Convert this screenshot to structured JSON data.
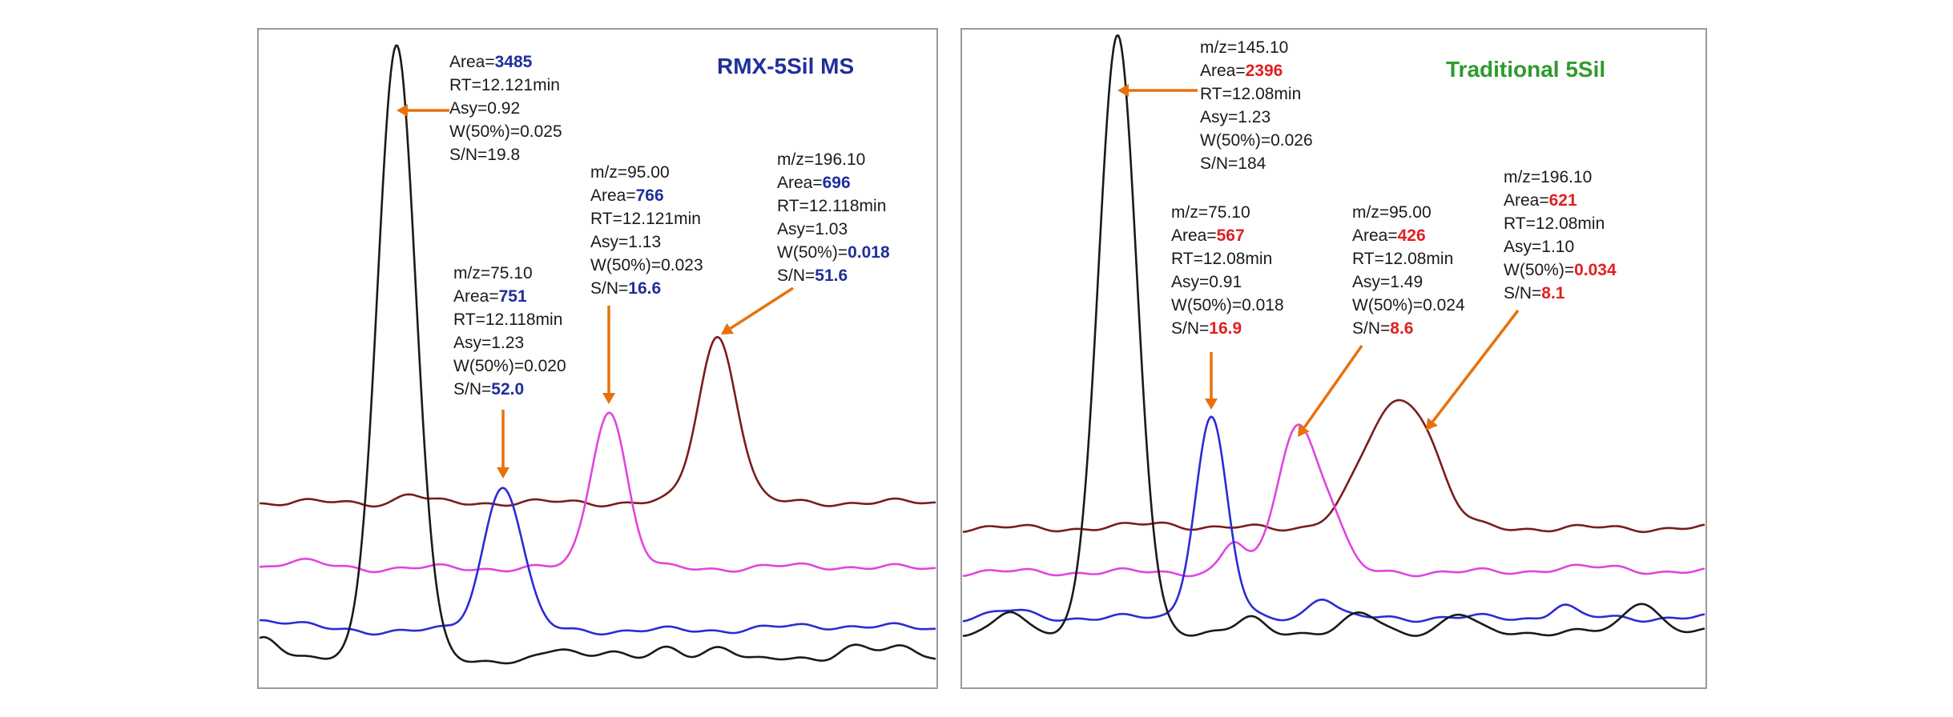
{
  "colors": {
    "black_trace": "#1a1a1a",
    "blue_trace": "#2b2bd6",
    "magenta_trace": "#e045e0",
    "maroon_trace": "#7a1c1c",
    "arrow": "#e8710c",
    "left_value": "#1f2f9a",
    "right_value": "#e02020",
    "left_title": "#1f2f9a",
    "right_title": "#2f9a2f"
  },
  "chart_data": [
    {
      "type": "line",
      "title": "RMX-5Sil MS",
      "title_color": "#1f2f9a",
      "value_color": "#1f2f9a",
      "grid": false,
      "legend": "none",
      "annotations": [
        {
          "target": "black",
          "lines": [
            {
              "k": "Area=",
              "v": "3485",
              "b": true
            },
            {
              "k": "RT=12.121min",
              "v": "",
              "b": false
            },
            {
              "k": "Asy=0.92",
              "v": "",
              "b": false
            },
            {
              "k": "W(50%)=0.025",
              "v": "",
              "b": false
            },
            {
              "k": "S/N=19.8",
              "v": "",
              "b": false
            }
          ]
        },
        {
          "target": "blue",
          "lines": [
            {
              "k": "m/z=75.10",
              "v": "",
              "b": false
            },
            {
              "k": "Area=",
              "v": "751",
              "b": true
            },
            {
              "k": "RT=12.118min",
              "v": "",
              "b": false
            },
            {
              "k": "Asy=1.23",
              "v": "",
              "b": false
            },
            {
              "k": "W(50%)=0.020",
              "v": "",
              "b": false
            },
            {
              "k": "S/N=",
              "v": "52.0",
              "b": true
            }
          ]
        },
        {
          "target": "magenta",
          "lines": [
            {
              "k": "m/z=95.00",
              "v": "",
              "b": false
            },
            {
              "k": "Area=",
              "v": "766",
              "b": true
            },
            {
              "k": "RT=12.121min",
              "v": "",
              "b": false
            },
            {
              "k": "Asy=1.13",
              "v": "",
              "b": false
            },
            {
              "k": "W(50%)=0.023",
              "v": "",
              "b": false
            },
            {
              "k": "S/N=",
              "v": "16.6",
              "b": true
            }
          ]
        },
        {
          "target": "maroon",
          "lines": [
            {
              "k": "m/z=196.10",
              "v": "",
              "b": false
            },
            {
              "k": "Area=",
              "v": "696",
              "b": true
            },
            {
              "k": "RT=12.118min",
              "v": "",
              "b": false
            },
            {
              "k": "Asy=1.03",
              "v": "",
              "b": false
            },
            {
              "k": "W(50%)=",
              "v": "0.018",
              "b": true
            },
            {
              "k": "S/N=",
              "v": "51.6",
              "b": true
            }
          ]
        }
      ]
    },
    {
      "type": "line",
      "title": "Traditional 5Sil",
      "title_color": "#2f9a2f",
      "value_color": "#e02020",
      "grid": false,
      "legend": "none",
      "annotations": [
        {
          "target": "black",
          "lines": [
            {
              "k": "m/z=145.10",
              "v": "",
              "b": false
            },
            {
              "k": "Area=",
              "v": "2396",
              "b": true
            },
            {
              "k": "RT=12.08min",
              "v": "",
              "b": false
            },
            {
              "k": "Asy=1.23",
              "v": "",
              "b": false
            },
            {
              "k": "W(50%)=0.026",
              "v": "",
              "b": false
            },
            {
              "k": "S/N=184",
              "v": "",
              "b": false
            }
          ]
        },
        {
          "target": "blue",
          "lines": [
            {
              "k": "m/z=75.10",
              "v": "",
              "b": false
            },
            {
              "k": "Area=",
              "v": "567",
              "b": true
            },
            {
              "k": "RT=12.08min",
              "v": "",
              "b": false
            },
            {
              "k": "Asy=0.91",
              "v": "",
              "b": false
            },
            {
              "k": "W(50%)=0.018",
              "v": "",
              "b": false
            },
            {
              "k": "S/N=",
              "v": "16.9",
              "b": true
            }
          ]
        },
        {
          "target": "magenta",
          "lines": [
            {
              "k": "m/z=95.00",
              "v": "",
              "b": false
            },
            {
              "k": "Area=",
              "v": "426",
              "b": true
            },
            {
              "k": "RT=12.08min",
              "v": "",
              "b": false
            },
            {
              "k": "Asy=1.49",
              "v": "",
              "b": false
            },
            {
              "k": "W(50%)=0.024",
              "v": "",
              "b": false
            },
            {
              "k": "S/N=",
              "v": "8.6",
              "b": true
            }
          ]
        },
        {
          "target": "maroon",
          "lines": [
            {
              "k": "m/z=196.10",
              "v": "",
              "b": false
            },
            {
              "k": "Area=",
              "v": "621",
              "b": true
            },
            {
              "k": "RT=12.08min",
              "v": "",
              "b": false
            },
            {
              "k": "Asy=1.10",
              "v": "",
              "b": false
            },
            {
              "k": "W(50%)=",
              "v": "0.034",
              "b": true
            },
            {
              "k": "S/N=",
              "v": "8.1",
              "b": true
            }
          ]
        }
      ]
    }
  ]
}
